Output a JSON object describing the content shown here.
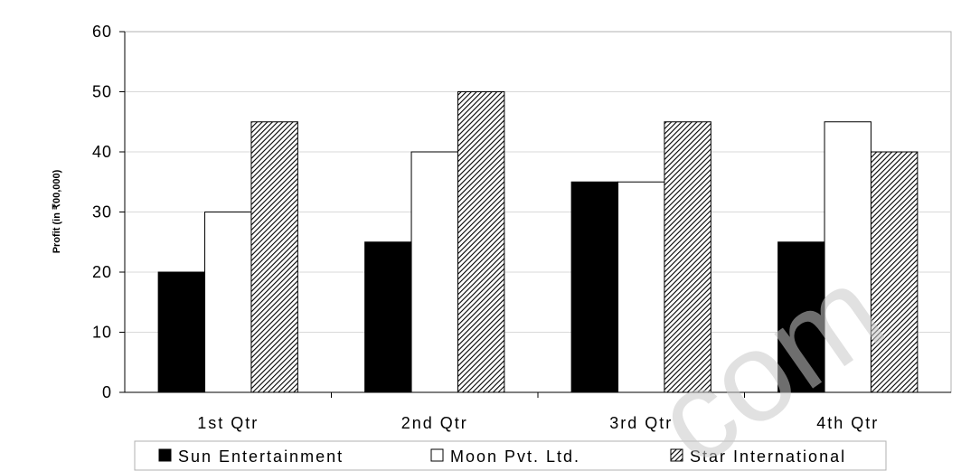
{
  "chart_data": {
    "type": "bar",
    "categories": [
      "1st Qtr",
      "2nd Qtr",
      "3rd Qtr",
      "4th Qtr"
    ],
    "series": [
      {
        "name": "Sun Entertainment",
        "values": [
          20,
          25,
          35,
          25
        ],
        "fill": "#000000"
      },
      {
        "name": "Moon Pvt. Ltd.",
        "values": [
          30,
          40,
          35,
          45
        ],
        "fill": "#ffffff"
      },
      {
        "name": "Star International",
        "values": [
          45,
          50,
          45,
          40
        ],
        "fill": "hatch"
      }
    ],
    "title": "",
    "xlabel": "",
    "ylabel": "Profit (in ₹00,000)",
    "ylim": [
      0,
      60
    ],
    "yticks": [
      0,
      10,
      20,
      30,
      40,
      50,
      60
    ],
    "grid": true,
    "legend_position": "bottom"
  },
  "watermark": "com"
}
